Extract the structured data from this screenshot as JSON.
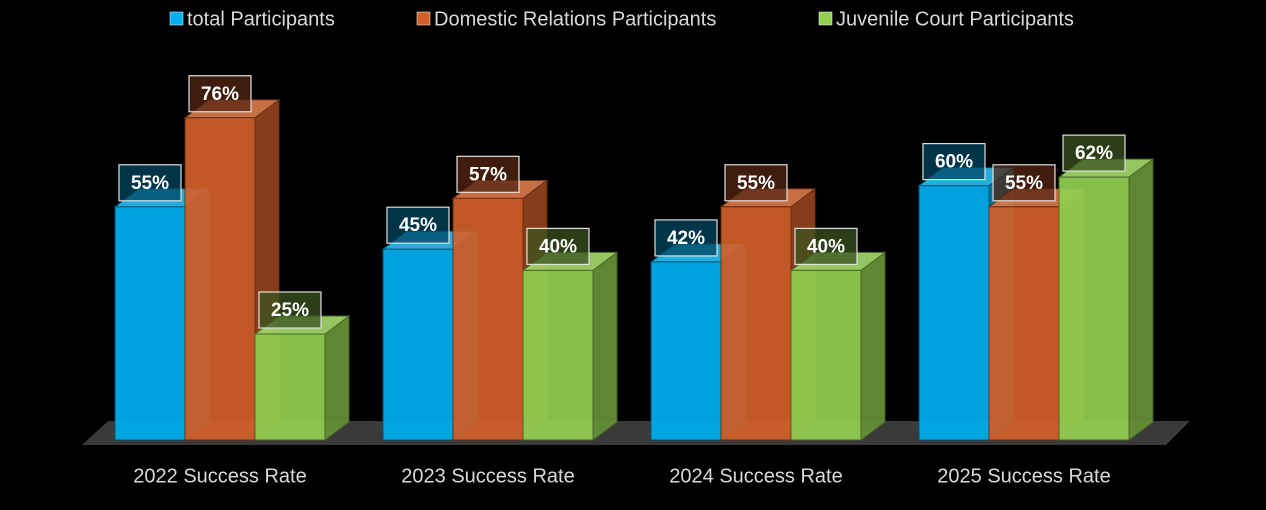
{
  "chart_data": {
    "type": "bar3d",
    "categories": [
      "2022 Success Rate",
      "2023 Success Rate",
      "2024 Success Rate",
      "2025 Success Rate"
    ],
    "series": [
      {
        "name": "total Participants",
        "color": "#00b0f0",
        "values": [
          55,
          45,
          42,
          60
        ],
        "value_labels": [
          "55%",
          "45%",
          "42%",
          "60%"
        ]
      },
      {
        "name": "Domestic Relations Participants",
        "color": "#d2602a",
        "values": [
          76,
          57,
          55,
          55
        ],
        "value_labels": [
          "76%",
          "57%",
          "55%",
          "55%"
        ]
      },
      {
        "name": "Juvenile Court Participants",
        "color": "#92d050",
        "values": [
          25,
          40,
          40,
          62
        ],
        "value_labels": [
          "25%",
          "40%",
          "40%",
          "62%"
        ]
      }
    ],
    "ylim": [
      0,
      100
    ],
    "legend": "top"
  }
}
